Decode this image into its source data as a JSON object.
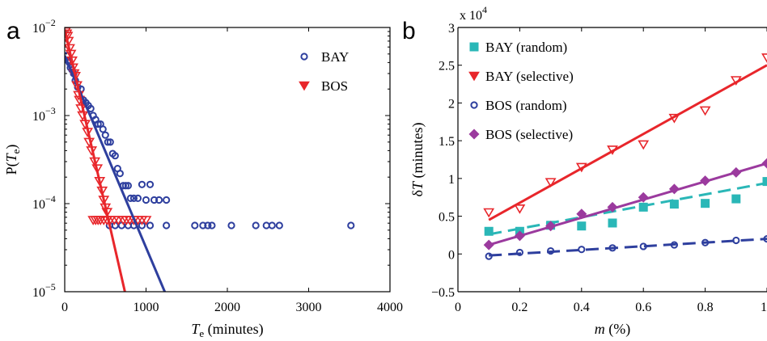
{
  "chart_data": [
    {
      "type": "scatter",
      "panel_label": "a",
      "xlabel": {
        "main": "T",
        "sub": "e",
        "rest": " (minutes)"
      },
      "ylabel": {
        "prefix": "P(",
        "main": "T",
        "sub": "e",
        "suffix": ")"
      },
      "xlim": [
        0,
        4000
      ],
      "ylim": [
        1e-05,
        0.01
      ],
      "yscale": "log",
      "xticks": [
        0,
        1000,
        2000,
        3000,
        4000
      ],
      "yticks": [
        {
          "value": 1e-05,
          "base": "10",
          "exp": "−5"
        },
        {
          "value": 0.0001,
          "base": "10",
          "exp": "−4"
        },
        {
          "value": 0.001,
          "base": "10",
          "exp": "−3"
        },
        {
          "value": 0.01,
          "base": "10",
          "exp": "−2"
        }
      ],
      "legend_position": "top-right",
      "series": [
        {
          "name": "BAY",
          "marker": "circle-open",
          "color": "#2e3f9e",
          "points": [
            [
              30,
              0.0048
            ],
            [
              40,
              0.0042
            ],
            [
              55,
              0.004
            ],
            [
              70,
              0.0035
            ],
            [
              90,
              0.0033
            ],
            [
              110,
              0.003
            ],
            [
              130,
              0.0025
            ],
            [
              160,
              0.0021
            ],
            [
              200,
              0.002
            ],
            [
              230,
              0.0015
            ],
            [
              260,
              0.0014
            ],
            [
              290,
              0.0013
            ],
            [
              320,
              0.0012
            ],
            [
              350,
              0.001
            ],
            [
              380,
              0.0009
            ],
            [
              410,
              0.0008
            ],
            [
              440,
              0.0008
            ],
            [
              470,
              0.0007
            ],
            [
              500,
              0.0006
            ],
            [
              530,
              0.0005
            ],
            [
              560,
              0.0005
            ],
            [
              590,
              0.00037
            ],
            [
              620,
              0.00035
            ],
            [
              650,
              0.00025
            ],
            [
              680,
              0.00022
            ],
            [
              720,
              0.00016
            ],
            [
              750,
              0.00016
            ],
            [
              780,
              0.00016
            ],
            [
              810,
              0.000115
            ],
            [
              850,
              0.000115
            ],
            [
              900,
              0.000115
            ],
            [
              950,
              0.000165
            ],
            [
              1000,
              0.00011
            ],
            [
              1050,
              0.000165
            ],
            [
              1100,
              0.00011
            ],
            [
              1160,
              0.00011
            ],
            [
              1250,
              0.00011
            ],
            [
              550,
              5.65e-05
            ],
            [
              620,
              5.65e-05
            ],
            [
              700,
              5.65e-05
            ],
            [
              780,
              5.65e-05
            ],
            [
              850,
              5.65e-05
            ],
            [
              950,
              5.65e-05
            ],
            [
              1050,
              5.65e-05
            ],
            [
              1250,
              5.65e-05
            ],
            [
              1600,
              5.65e-05
            ],
            [
              1700,
              5.65e-05
            ],
            [
              1760,
              5.65e-05
            ],
            [
              1810,
              5.65e-05
            ],
            [
              2050,
              5.65e-05
            ],
            [
              2350,
              5.65e-05
            ],
            [
              2480,
              5.65e-05
            ],
            [
              2550,
              5.65e-05
            ],
            [
              2640,
              5.65e-05
            ],
            [
              3520,
              5.65e-05
            ]
          ]
        },
        {
          "name": "BOS",
          "marker": "triangle-down",
          "color": "#e8262b",
          "points": [
            [
              10,
              0.009
            ],
            [
              25,
              0.0085
            ],
            [
              35,
              0.008
            ],
            [
              45,
              0.007
            ],
            [
              60,
              0.0058
            ],
            [
              75,
              0.005
            ],
            [
              90,
              0.0042
            ],
            [
              100,
              0.0035
            ],
            [
              115,
              0.003
            ],
            [
              130,
              0.0028
            ],
            [
              150,
              0.0022
            ],
            [
              170,
              0.0017
            ],
            [
              180,
              0.0015
            ],
            [
              200,
              0.0012
            ],
            [
              220,
              0.001
            ],
            [
              250,
              0.0008
            ],
            [
              280,
              0.00065
            ],
            [
              300,
              0.0005
            ],
            [
              330,
              0.0004
            ],
            [
              370,
              0.0003
            ],
            [
              400,
              0.00025
            ],
            [
              430,
              0.00018
            ],
            [
              460,
              0.00014
            ],
            [
              480,
              0.00011
            ],
            [
              500,
              9e-05
            ],
            [
              520,
              8e-05
            ],
            [
              350,
              6.5e-05
            ],
            [
              380,
              6.5e-05
            ],
            [
              410,
              6.5e-05
            ],
            [
              440,
              6.5e-05
            ],
            [
              480,
              6.5e-05
            ],
            [
              520,
              6.5e-05
            ],
            [
              560,
              6.5e-05
            ],
            [
              610,
              6.5e-05
            ],
            [
              660,
              6.5e-05
            ],
            [
              720,
              6.5e-05
            ],
            [
              760,
              6.5e-05
            ],
            [
              800,
              6.5e-05
            ],
            [
              850,
              6.5e-05
            ],
            [
              900,
              6.5e-05
            ],
            [
              950,
              6.5e-05
            ],
            [
              1000,
              6.5e-05
            ]
          ]
        }
      ],
      "fit_lines": [
        {
          "series": "BAY",
          "color": "#2e3f9e",
          "from": [
            0,
            0.0048
          ],
          "to": [
            1230,
            1e-05
          ]
        },
        {
          "series": "BOS",
          "color": "#e8262b",
          "from": [
            0,
            0.0095
          ],
          "to": [
            740,
            1e-05
          ]
        }
      ]
    },
    {
      "type": "scatter",
      "panel_label": "b",
      "xlabel": {
        "main": "m",
        "rest": " (%)"
      },
      "ylabel": {
        "prefix": "δ",
        "main": "T",
        "suffix": " (minutes)"
      },
      "multiplier": {
        "base": "x 10",
        "exp": "4"
      },
      "xlim": [
        0,
        1
      ],
      "ylim": [
        -0.5,
        3
      ],
      "xticks": [
        {
          "value": 0,
          "label": "0"
        },
        {
          "value": 0.2,
          "label": "0.2"
        },
        {
          "value": 0.4,
          "label": "0.4"
        },
        {
          "value": 0.6,
          "label": "0.6"
        },
        {
          "value": 0.8,
          "label": "0.8"
        },
        {
          "value": 1,
          "label": "1"
        }
      ],
      "yticks": [
        {
          "value": -0.5,
          "label": "−0.5"
        },
        {
          "value": 0,
          "label": "0"
        },
        {
          "value": 0.5,
          "label": "0.5"
        },
        {
          "value": 1,
          "label": "1"
        },
        {
          "value": 1.5,
          "label": "1.5"
        },
        {
          "value": 2,
          "label": "2"
        },
        {
          "value": 2.5,
          "label": "2.5"
        },
        {
          "value": 3,
          "label": "3"
        }
      ],
      "legend_position": "top-left",
      "series": [
        {
          "name": "BAY (random)",
          "marker": "square-filled",
          "color": "#2ab7b7",
          "line": "dashed",
          "x": [
            0.1,
            0.2,
            0.3,
            0.4,
            0.5,
            0.6,
            0.7,
            0.8,
            0.9,
            1.0
          ],
          "y": [
            0.3,
            0.3,
            0.38,
            0.37,
            0.41,
            0.62,
            0.66,
            0.67,
            0.73,
            0.96
          ],
          "fit": [
            0.26,
            0.94
          ]
        },
        {
          "name": "BAY (selective)",
          "marker": "triangle-down",
          "color": "#e8262b",
          "line": "solid",
          "x": [
            0.1,
            0.2,
            0.3,
            0.4,
            0.5,
            0.6,
            0.7,
            0.8,
            0.9,
            1.0
          ],
          "y": [
            0.55,
            0.6,
            0.95,
            1.15,
            1.38,
            1.45,
            1.8,
            1.9,
            2.3,
            2.6
          ],
          "fit": [
            0.45,
            2.5
          ]
        },
        {
          "name": "BOS (random)",
          "marker": "circle-open",
          "color": "#2e3f9e",
          "line": "dashed",
          "x": [
            0.1,
            0.2,
            0.3,
            0.4,
            0.5,
            0.6,
            0.7,
            0.8,
            0.9,
            1.0
          ],
          "y": [
            -0.03,
            0.02,
            0.04,
            0.06,
            0.08,
            0.1,
            0.12,
            0.15,
            0.18,
            0.2
          ],
          "fit": [
            -0.02,
            0.2
          ]
        },
        {
          "name": "BOS (selective)",
          "marker": "diamond-filled",
          "color": "#9b3a9e",
          "line": "solid",
          "x": [
            0.1,
            0.2,
            0.3,
            0.4,
            0.5,
            0.6,
            0.7,
            0.8,
            0.9,
            1.0
          ],
          "y": [
            0.12,
            0.24,
            0.37,
            0.53,
            0.62,
            0.75,
            0.86,
            0.97,
            1.08,
            1.2
          ],
          "fit": [
            0.12,
            1.2
          ]
        }
      ]
    }
  ]
}
